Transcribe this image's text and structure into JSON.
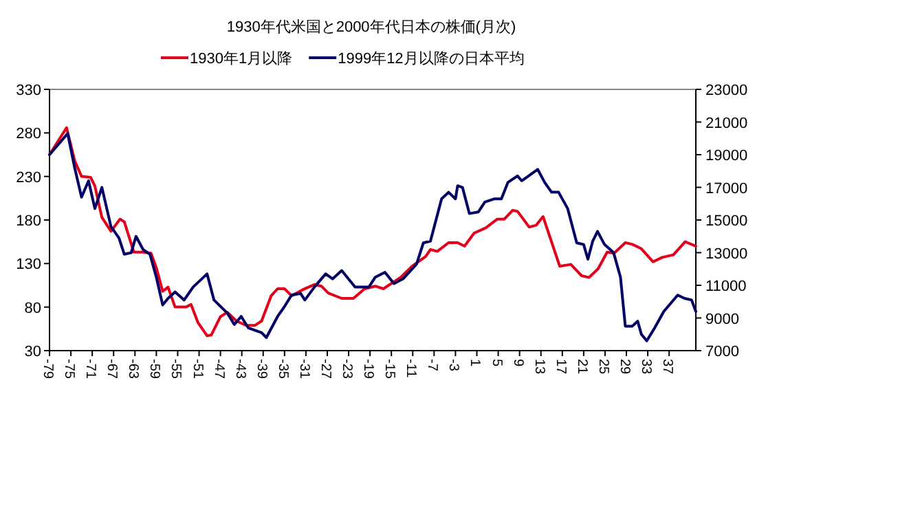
{
  "chart_data": {
    "type": "line",
    "title": "1930年代米国と2000年代日本の株価(月次)",
    "legend": "top",
    "grid": false,
    "line_style": "solid",
    "xlim": [
      -79,
      42
    ],
    "xticks": [
      -79,
      -75,
      -71,
      -67,
      -63,
      -59,
      -55,
      -51,
      -47,
      -43,
      -39,
      -35,
      -31,
      -27,
      -23,
      -19,
      -15,
      -11,
      -7,
      -3,
      1,
      5,
      9,
      13,
      17,
      21,
      25,
      29,
      33,
      37
    ],
    "ylim": [
      30,
      330
    ],
    "yticks": [
      30,
      80,
      130,
      180,
      230,
      280,
      330
    ],
    "y2lim": [
      7000,
      23000
    ],
    "y2ticks": [
      7000,
      9000,
      11000,
      13000,
      15000,
      17000,
      19000,
      21000,
      23000
    ],
    "series": [
      {
        "name": "1930年1月以降",
        "color": "#e3001b",
        "x": [
          -79,
          -75.8,
          -74.3,
          -73,
          -71.3,
          -70.5,
          -69.2,
          -67.5,
          -65.8,
          -65,
          -63.2,
          -61.5,
          -60,
          -59,
          -57.8,
          -56.8,
          -55.5,
          -53.4,
          -52.5,
          -51.2,
          -49.5,
          -48.7,
          -47,
          -45.7,
          -44,
          -42.2,
          -40.5,
          -39.3,
          -37.5,
          -36.3,
          -35,
          -33.7,
          -31.6,
          -29.4,
          -28.1,
          -26.8,
          -24.3,
          -22.1,
          -20,
          -18,
          -16.5,
          -13.3,
          -11.1,
          -8.6,
          -7.7,
          -6.4,
          -4.3,
          -2.6,
          -1.3,
          0.5,
          2.7,
          4.8,
          6.1,
          7.7,
          8.6,
          10.8,
          12.1,
          13.4,
          16.5,
          18.6,
          20.6,
          22,
          23.7,
          25.4,
          26.7,
          28.8,
          30.1,
          31.8,
          34,
          35.7,
          37.8,
          40,
          42
        ],
        "values": [
          255,
          286,
          248,
          230,
          229,
          219,
          183,
          167,
          181,
          178,
          143,
          143,
          142,
          125,
          98,
          103,
          80,
          80,
          83,
          62,
          47,
          48,
          69,
          74,
          64,
          59,
          59,
          64,
          93,
          101,
          101,
          93,
          100,
          106,
          104,
          96,
          90,
          90,
          101,
          104,
          101,
          114,
          127,
          138,
          146,
          144,
          154,
          154,
          150,
          165,
          171,
          181,
          181,
          191,
          190,
          172,
          174,
          184,
          127,
          129,
          116,
          114,
          124,
          143,
          142,
          154,
          152,
          147,
          132,
          137,
          140,
          155,
          150
        ]
      },
      {
        "name": "1999年12月以降の日本平均",
        "color": "#000066",
        "axis": "y2",
        "x": [
          -79,
          -75.6,
          -74.3,
          -73,
          -71.7,
          -70.5,
          -69.2,
          -67.5,
          -66,
          -65,
          -63.7,
          -62.8,
          -61.5,
          -60.2,
          -59,
          -57.8,
          -56.8,
          -55.5,
          -53.8,
          -52.1,
          -49.5,
          -48.2,
          -45.7,
          -44.4,
          -43.1,
          -41.8,
          -39.3,
          -38.4,
          -36.3,
          -35,
          -33.7,
          -32,
          -31.2,
          -29.4,
          -27.3,
          -26,
          -24.3,
          -21.8,
          -19.2,
          -18,
          -16.2,
          -14.5,
          -12.8,
          -10.3,
          -9,
          -7.7,
          -5.6,
          -4.3,
          -3,
          -2.6,
          -1.7,
          -0.4,
          1.3,
          2.5,
          4.3,
          5.6,
          6.8,
          8.6,
          9.4,
          10.7,
          12.4,
          13.7,
          15,
          16.3,
          18,
          19.7,
          21,
          21.8,
          22.7,
          23.6,
          24.9,
          26.6,
          27.9,
          28.8,
          30.1,
          31.1,
          31.8,
          32.8,
          34.3,
          36,
          38.6,
          39.9,
          41.2,
          42
        ],
        "values": [
          19000,
          20300,
          18200,
          16400,
          17400,
          15700,
          17000,
          14600,
          13900,
          12900,
          13000,
          14000,
          13200,
          12900,
          11500,
          9800,
          10200,
          10600,
          10100,
          10900,
          11700,
          10100,
          9300,
          8600,
          9100,
          8400,
          8100,
          7800,
          9100,
          9700,
          10400,
          10500,
          10100,
          10900,
          11700,
          11400,
          11900,
          10900,
          10900,
          11500,
          11800,
          11100,
          11400,
          12300,
          13600,
          13700,
          16300,
          16700,
          16300,
          17100,
          17000,
          15400,
          15500,
          16100,
          16300,
          16300,
          17300,
          17700,
          17400,
          17700,
          18100,
          17300,
          16700,
          16700,
          15700,
          13600,
          13500,
          12600,
          13700,
          14300,
          13500,
          13000,
          11500,
          8500,
          8500,
          8800,
          8000,
          7600,
          8400,
          9400,
          10400,
          10200,
          10100,
          9400
        ]
      }
    ]
  }
}
